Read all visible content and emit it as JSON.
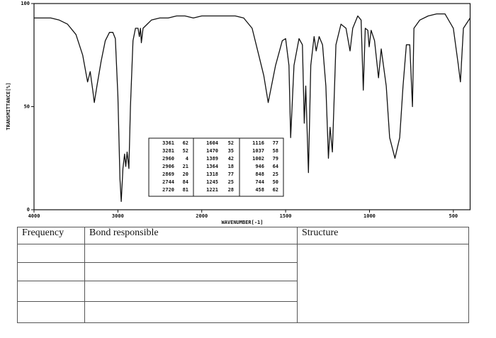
{
  "chart_data": {
    "type": "line",
    "x": [
      4000,
      3900,
      3800,
      3700,
      3600,
      3500,
      3420,
      3361,
      3330,
      3300,
      3281,
      3250,
      3200,
      3150,
      3100,
      3060,
      3030,
      3000,
      2975,
      2960,
      2940,
      2920,
      2906,
      2890,
      2869,
      2850,
      2820,
      2790,
      2760,
      2744,
      2730,
      2720,
      2700,
      2650,
      2600,
      2500,
      2400,
      2300,
      2200,
      2100,
      2000,
      1900,
      1800,
      1750,
      1700,
      1660,
      1630,
      1604,
      1560,
      1520,
      1500,
      1480,
      1470,
      1450,
      1420,
      1400,
      1389,
      1380,
      1364,
      1350,
      1330,
      1318,
      1300,
      1280,
      1260,
      1245,
      1235,
      1221,
      1200,
      1170,
      1140,
      1116,
      1100,
      1070,
      1050,
      1037,
      1025,
      1010,
      1002,
      990,
      970,
      946,
      930,
      900,
      880,
      848,
      820,
      800,
      780,
      760,
      744,
      735,
      700,
      650,
      600,
      550,
      500,
      470,
      458,
      440,
      400
    ],
    "values": [
      93,
      93,
      93,
      92,
      90,
      85,
      75,
      62,
      67,
      58,
      52,
      60,
      72,
      82,
      86,
      86,
      83,
      55,
      15,
      4,
      20,
      27,
      21,
      28,
      20,
      50,
      82,
      88,
      88,
      84,
      88,
      81,
      88,
      90,
      92,
      93,
      93,
      94,
      94,
      93,
      94,
      94,
      94,
      93,
      88,
      75,
      65,
      52,
      70,
      82,
      83,
      70,
      35,
      70,
      83,
      80,
      42,
      60,
      18,
      70,
      84,
      77,
      84,
      80,
      60,
      25,
      40,
      28,
      80,
      90,
      88,
      77,
      88,
      94,
      92,
      58,
      88,
      87,
      79,
      87,
      82,
      64,
      78,
      60,
      35,
      25,
      35,
      60,
      80,
      80,
      50,
      88,
      92,
      94,
      95,
      95,
      88,
      70,
      62,
      88,
      93
    ],
    "color": "#111111",
    "xlim": [
      4000,
      400
    ],
    "x_scale_break": 2000,
    "xticks": [
      4000,
      3000,
      2000,
      1500,
      1000,
      500
    ],
    "ylim": [
      0,
      100
    ],
    "yticks": [
      0,
      50,
      100
    ],
    "xlabel": "WAVENUMBER[-1]",
    "ylabel": "TRANSMITTANCE[%]",
    "peak_table": [
      [
        3361,
        62
      ],
      [
        3281,
        52
      ],
      [
        2960,
        4
      ],
      [
        2906,
        21
      ],
      [
        2869,
        20
      ],
      [
        2744,
        84
      ],
      [
        2720,
        81
      ],
      [
        1604,
        52
      ],
      [
        1470,
        35
      ],
      [
        1389,
        42
      ],
      [
        1364,
        18
      ],
      [
        1318,
        77
      ],
      [
        1245,
        25
      ],
      [
        1221,
        28
      ],
      [
        1116,
        77
      ],
      [
        1037,
        58
      ],
      [
        1002,
        79
      ],
      [
        946,
        64
      ],
      [
        848,
        25
      ],
      [
        744,
        50
      ],
      [
        458,
        62
      ]
    ]
  },
  "table": {
    "header": [
      "Frequency",
      "Bond responsible",
      "Structure"
    ]
  }
}
